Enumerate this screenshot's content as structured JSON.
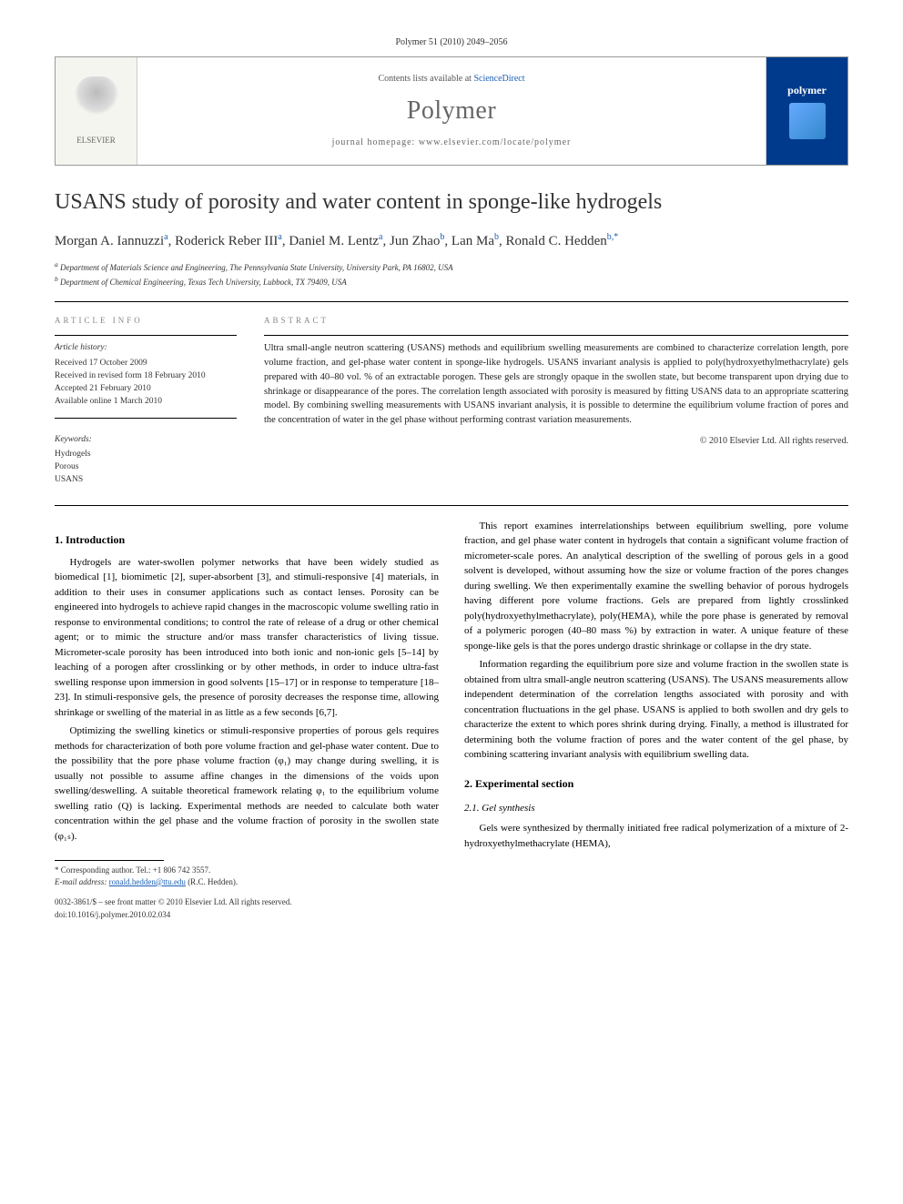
{
  "citation": "Polymer 51 (2010) 2049–2056",
  "header": {
    "contents_prefix": "Contents lists available at ",
    "contents_link": "ScienceDirect",
    "journal": "Polymer",
    "homepage_label": "journal homepage: ",
    "homepage_url": "www.elsevier.com/locate/polymer",
    "publisher": "ELSEVIER",
    "badge": "polymer"
  },
  "title": "USANS study of porosity and water content in sponge-like hydrogels",
  "authors_html": "Morgan A. Iannuzzi ᵃ, Roderick Reber III ᵃ, Daniel M. Lentz ᵃ, Jun Zhao ᵇ, Lan Ma ᵇ, Ronald C. Hedden ᵇ,*",
  "authors": [
    {
      "name": "Morgan A. Iannuzzi",
      "aff": "a"
    },
    {
      "name": "Roderick Reber III",
      "aff": "a"
    },
    {
      "name": "Daniel M. Lentz",
      "aff": "a"
    },
    {
      "name": "Jun Zhao",
      "aff": "b"
    },
    {
      "name": "Lan Ma",
      "aff": "b"
    },
    {
      "name": "Ronald C. Hedden",
      "aff": "b,*"
    }
  ],
  "affiliations": {
    "a": "Department of Materials Science and Engineering, The Pennsylvania State University, University Park, PA 16802, USA",
    "b": "Department of Chemical Engineering, Texas Tech University, Lubbock, TX 79409, USA"
  },
  "article_info": {
    "label": "ARTICLE INFO",
    "history_label": "Article history:",
    "received": "Received 17 October 2009",
    "revised": "Received in revised form 18 February 2010",
    "accepted": "Accepted 21 February 2010",
    "online": "Available online 1 March 2010",
    "keywords_label": "Keywords:",
    "keywords": [
      "Hydrogels",
      "Porous",
      "USANS"
    ]
  },
  "abstract": {
    "label": "ABSTRACT",
    "text": "Ultra small-angle neutron scattering (USANS) methods and equilibrium swelling measurements are combined to characterize correlation length, pore volume fraction, and gel-phase water content in sponge-like hydrogels. USANS invariant analysis is applied to poly(hydroxyethylmethacrylate) gels prepared with 40–80 vol. % of an extractable porogen. These gels are strongly opaque in the swollen state, but become transparent upon drying due to shrinkage or disappearance of the pores. The correlation length associated with porosity is measured by fitting USANS data to an appropriate scattering model. By combining swelling measurements with USANS invariant analysis, it is possible to determine the equilibrium volume fraction of pores and the concentration of water in the gel phase without performing contrast variation measurements.",
    "copyright": "© 2010 Elsevier Ltd. All rights reserved."
  },
  "sections": {
    "intro_heading": "1. Introduction",
    "intro_p1": "Hydrogels are water-swollen polymer networks that have been widely studied as biomedical [1], biomimetic [2], super-absorbent [3], and stimuli-responsive [4] materials, in addition to their uses in consumer applications such as contact lenses. Porosity can be engineered into hydrogels to achieve rapid changes in the macroscopic volume swelling ratio in response to environmental conditions; to control the rate of release of a drug or other chemical agent; or to mimic the structure and/or mass transfer characteristics of living tissue. Micrometer-scale porosity has been introduced into both ionic and non-ionic gels [5–14] by leaching of a porogen after crosslinking or by other methods, in order to induce ultra-fast swelling response upon immersion in good solvents [15–17] or in response to temperature [18–23]. In stimuli-responsive gels, the presence of porosity decreases the response time, allowing shrinkage or swelling of the material in as little as a few seconds [6,7].",
    "intro_p2": "Optimizing the swelling kinetics or stimuli-responsive properties of porous gels requires methods for characterization of both pore volume fraction and gel-phase water content. Due to the possibility that the pore phase volume fraction (φ₁) may change during swelling, it is usually not possible to assume affine changes in the dimensions of the voids upon swelling/deswelling. A suitable theoretical framework relating φ₁ to the equilibrium volume swelling ratio (Q) is lacking. Experimental methods are needed to calculate both water concentration within the gel phase and the volume fraction of porosity in the swollen state (φ₁ₛ).",
    "intro_p3": "This report examines interrelationships between equilibrium swelling, pore volume fraction, and gel phase water content in hydrogels that contain a significant volume fraction of micrometer-scale pores. An analytical description of the swelling of porous gels in a good solvent is developed, without assuming how the size or volume fraction of the pores changes during swelling. We then experimentally examine the swelling behavior of porous hydrogels having different pore volume fractions. Gels are prepared from lightly crosslinked poly(hydroxyethylmethacrylate), poly(HEMA), while the pore phase is generated by removal of a polymeric porogen (40–80 mass %) by extraction in water. A unique feature of these sponge-like gels is that the pores undergo drastic shrinkage or collapse in the dry state.",
    "intro_p4": "Information regarding the equilibrium pore size and volume fraction in the swollen state is obtained from ultra small-angle neutron scattering (USANS). The USANS measurements allow independent determination of the correlation lengths associated with porosity and with concentration fluctuations in the gel phase. USANS is applied to both swollen and dry gels to characterize the extent to which pores shrink during drying. Finally, a method is illustrated for determining both the volume fraction of pores and the water content of the gel phase, by combining scattering invariant analysis with equilibrium swelling data.",
    "exp_heading": "2. Experimental section",
    "exp_sub1": "2.1. Gel synthesis",
    "exp_p1": "Gels were synthesized by thermally initiated free radical polymerization of a mixture of 2-hydroxyethylmethacrylate (HEMA),"
  },
  "footnote": {
    "corr_label": "* Corresponding author. Tel.: +1 806 742 3557.",
    "email_label": "E-mail address: ",
    "email": "ronald.hedden@ttu.edu",
    "email_who": " (R.C. Hedden)."
  },
  "footer": {
    "line1": "0032-3861/$ – see front matter © 2010 Elsevier Ltd. All rights reserved.",
    "line2": "doi:10.1016/j.polymer.2010.02.034"
  },
  "colors": {
    "link": "#1a5fb4",
    "badge_bg": "#003a8c",
    "rule": "#000000",
    "muted": "#888888"
  }
}
